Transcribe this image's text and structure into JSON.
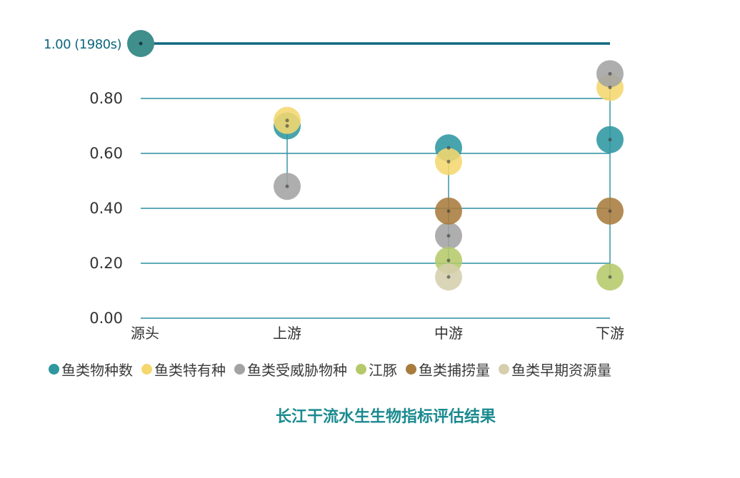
{
  "chart_data": {
    "type": "scatter",
    "title": "长江干流水生生物指标评估结果",
    "xlabel": "",
    "ylabel": "",
    "categories": [
      "源头",
      "上游",
      "中游",
      "下游"
    ],
    "ylim": [
      0,
      1.0
    ],
    "yticks": [
      {
        "value": 0.0,
        "label": "0.00"
      },
      {
        "value": 0.2,
        "label": "0.20"
      },
      {
        "value": 0.4,
        "label": "0.40"
      },
      {
        "value": 0.6,
        "label": "0.60"
      },
      {
        "value": 0.8,
        "label": "0.80"
      }
    ],
    "baseline": {
      "value": 1.0,
      "label": "1.00 (1980s)",
      "category": "源头"
    },
    "grid": true,
    "legend_position": "bottom",
    "series": [
      {
        "name": "鱼类物种数",
        "color": "#2e97a0",
        "values": [
          null,
          0.7,
          0.62,
          0.65
        ]
      },
      {
        "name": "鱼类特有种",
        "color": "#f5d76e",
        "values": [
          null,
          0.72,
          0.57,
          0.84
        ]
      },
      {
        "name": "鱼类受威胁物种",
        "color": "#a3a3a3",
        "values": [
          null,
          0.48,
          0.3,
          0.89
        ]
      },
      {
        "name": "江豚",
        "color": "#b5c96a",
        "values": [
          null,
          null,
          0.21,
          0.15
        ]
      },
      {
        "name": "鱼类捕捞量",
        "color": "#a87c3e",
        "values": [
          null,
          null,
          0.39,
          0.39
        ]
      },
      {
        "name": "鱼类早期资源量",
        "color": "#d6cfae",
        "values": [
          null,
          null,
          0.15,
          null
        ]
      }
    ]
  },
  "colors": {
    "grid": "#2a8fa0",
    "baseline": "#0f6780",
    "baseline_dot": "#3f8f8c",
    "title": "#1b8a8f",
    "axis_text": "#333333"
  }
}
